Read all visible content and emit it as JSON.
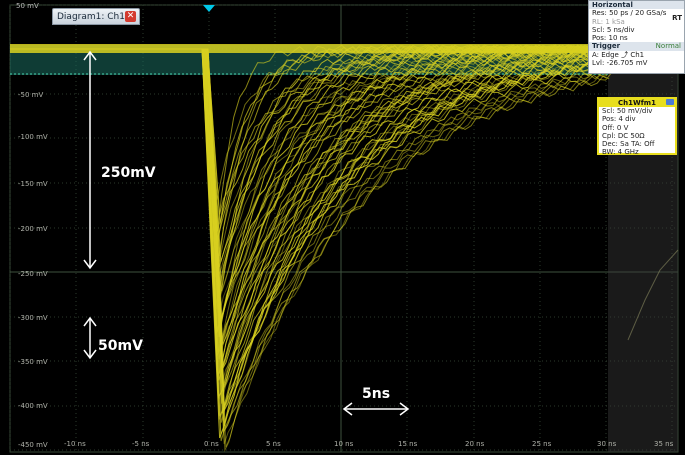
{
  "diagram_tab": {
    "label": "Diagram1: Ch1",
    "close_icon": "close-icon"
  },
  "top_level_label": "50 mV",
  "horizontal_panel": {
    "title": "Horizontal",
    "res": "Res: 50 ps / 20 GSa/s",
    "rl": "RL:  1 kSa",
    "rt": "RT",
    "scl": "Scl:  5 ns/div",
    "pos": "Pos: 10 ns",
    "trigger_title": "Trigger",
    "trigger_mode": "Normal",
    "trigger_a": "A:    Edge  ⤴ Ch1",
    "trigger_lvl": "Lvl:  -26.705 mV"
  },
  "channel_box": {
    "title": "Ch1Wfm1",
    "scl": "Scl:  50 mV/div",
    "pos": "Pos: 4 div",
    "off": "Off:   0 V",
    "cpl": "Cpl: DC 50Ω",
    "dec": "Dec: Sa     TA: Off",
    "bw": "BW: 4 GHz"
  },
  "annotations": {
    "amp_big": "250mV",
    "amp_small": "50mV",
    "time": "5ns"
  },
  "y_axis_labels": [
    "-50 mV",
    "-100 mV",
    "-150 mV",
    "-200 mV",
    "-250 mV",
    "-300 mV",
    "-350 mV",
    "-400 mV",
    "-450 mV"
  ],
  "x_axis_labels": [
    "-10 ns",
    "-5 ns",
    "0 ns",
    "5 ns",
    "10 ns",
    "15 ns",
    "20 ns",
    "25 ns",
    "30 ns",
    "35 ns"
  ],
  "colors": {
    "trace": "#d8d020",
    "grid": "#2c3a2c",
    "baseline": "#4ad2b0",
    "trigger_marker": "#00c8e8"
  }
}
